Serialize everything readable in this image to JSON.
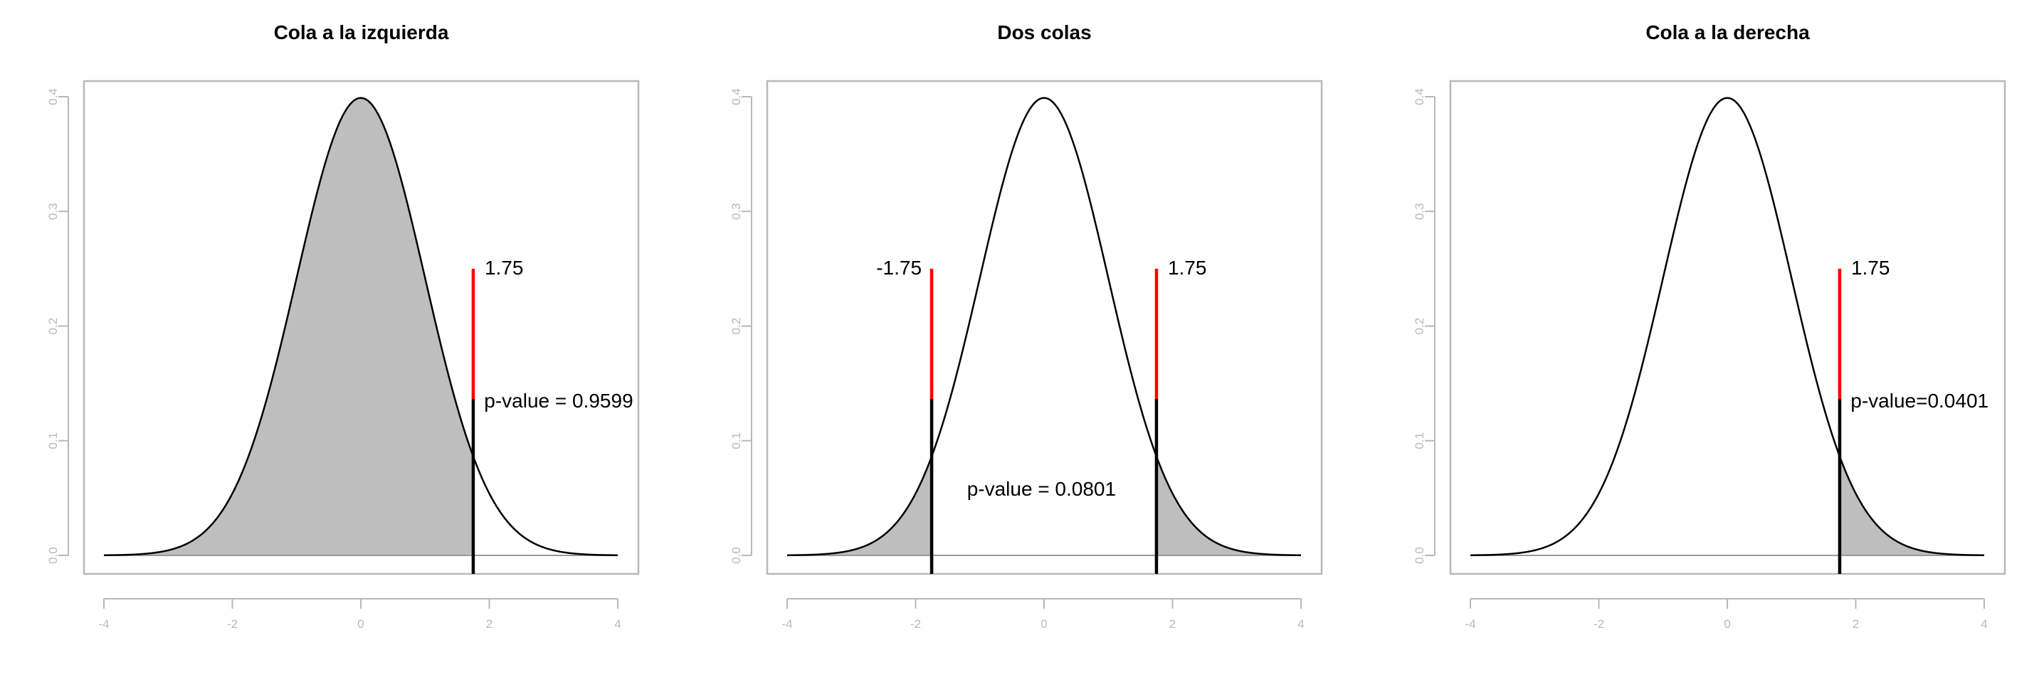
{
  "chart_data": [
    {
      "type": "area",
      "title": "Cola a la izquierda",
      "xlabel": "",
      "ylabel": "",
      "xlim": [
        -4,
        4
      ],
      "ylim": [
        0,
        0.4
      ],
      "x_ticks": [
        "-4",
        "-2",
        "0",
        "2",
        "4"
      ],
      "y_ticks": [
        "0.0",
        "0.1",
        "0.2",
        "0.3",
        "0.4"
      ],
      "curve": "standard normal density",
      "shaded": [
        {
          "from": -4,
          "to": 1.75
        }
      ],
      "cutoffs": [
        {
          "x": 1.75,
          "label": "1.75",
          "marker_top": 0.25
        }
      ],
      "annotations": [
        {
          "text": "p-value = 0.9599",
          "x": 1.92,
          "y": 0.129
        }
      ],
      "p_value": 0.9599,
      "colors": {
        "fill": "#bebebe",
        "curve": "#000000",
        "marker": "#ff0000",
        "axis": "#b8b8b8"
      }
    },
    {
      "type": "area",
      "title": "Dos colas",
      "xlabel": "",
      "ylabel": "",
      "xlim": [
        -4,
        4
      ],
      "ylim": [
        0,
        0.4
      ],
      "x_ticks": [
        "-4",
        "-2",
        "0",
        "2",
        "4"
      ],
      "y_ticks": [
        "0.0",
        "0.1",
        "0.2",
        "0.3",
        "0.4"
      ],
      "curve": "standard normal density",
      "shaded": [
        {
          "from": -4,
          "to": -1.75
        },
        {
          "from": 1.75,
          "to": 4
        }
      ],
      "cutoffs": [
        {
          "x": -1.75,
          "label": "-1.75",
          "marker_top": 0.25
        },
        {
          "x": 1.75,
          "label": "1.75",
          "marker_top": 0.25
        }
      ],
      "annotations": [
        {
          "text": "p-value = 0.0801",
          "x": -1.2,
          "y": 0.052
        }
      ],
      "p_value": 0.0801,
      "colors": {
        "fill": "#bebebe",
        "curve": "#000000",
        "marker": "#ff0000",
        "axis": "#b8b8b8"
      }
    },
    {
      "type": "area",
      "title": "Cola a la derecha",
      "xlabel": "",
      "ylabel": "",
      "xlim": [
        -4,
        4
      ],
      "ylim": [
        0,
        0.4
      ],
      "x_ticks": [
        "-4",
        "-2",
        "0",
        "2",
        "4"
      ],
      "y_ticks": [
        "0.0",
        "0.1",
        "0.2",
        "0.3",
        "0.4"
      ],
      "curve": "standard normal density",
      "shaded": [
        {
          "from": 1.75,
          "to": 4
        }
      ],
      "cutoffs": [
        {
          "x": 1.75,
          "label": "1.75",
          "marker_top": 0.25
        }
      ],
      "annotations": [
        {
          "text": "p-value=0.0401",
          "x": 1.92,
          "y": 0.129
        }
      ],
      "p_value": 0.0401,
      "colors": {
        "fill": "#bebebe",
        "curve": "#000000",
        "marker": "#ff0000",
        "axis": "#b8b8b8"
      }
    }
  ]
}
